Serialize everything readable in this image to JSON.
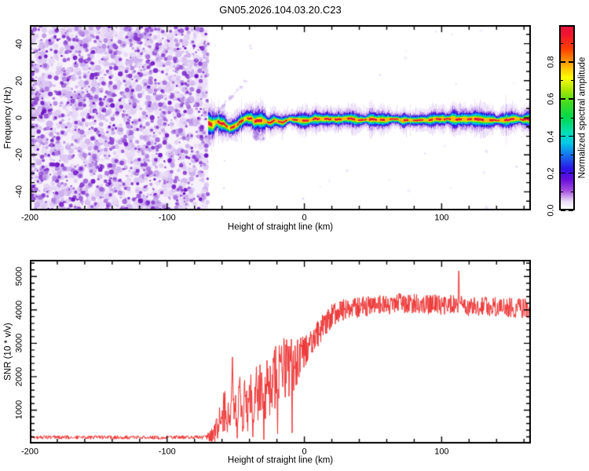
{
  "title": "GN05.2026.104.03.20.C23",
  "panels": {
    "spectrogram": {
      "xlabel": "Height of straight line (km)",
      "ylabel": "Frequency (Hz)",
      "xlim": [
        -200,
        165
      ],
      "ylim": [
        -50,
        50
      ],
      "xticks": [
        -200,
        -100,
        0,
        100
      ],
      "yticks": [
        -40,
        -20,
        0,
        20,
        40
      ],
      "x_minor_step": 20,
      "y_minor_step": 5
    },
    "snr": {
      "xlabel": "Height of straight line (km)",
      "ylabel": "SNR (10 * v/v)",
      "xlim": [
        -200,
        165
      ],
      "ylim": [
        0,
        5500
      ],
      "xticks": [
        -200,
        -100,
        0,
        100
      ],
      "yticks": [
        1000,
        2000,
        3000,
        4000,
        5000
      ],
      "x_minor_step": 20,
      "y_minor_step": 200,
      "line_color": "#ee3333"
    }
  },
  "colorbar": {
    "label": "Normalized spectral amplitude",
    "ticks": [
      "0.0",
      "0.2",
      "0.4",
      "0.6",
      "0.8"
    ],
    "tick_values": [
      0,
      0.2,
      0.4,
      0.6,
      0.8
    ],
    "minor_tick_values": [
      0.1,
      0.3,
      0.5,
      0.7,
      0.9
    ],
    "range": [
      0,
      1
    ],
    "stops": [
      {
        "v": 0.0,
        "c": "#ffffff"
      },
      {
        "v": 0.04,
        "c": "#ecdff7"
      },
      {
        "v": 0.1,
        "c": "#a34ee0"
      },
      {
        "v": 0.16,
        "c": "#6a0edd"
      },
      {
        "v": 0.22,
        "c": "#2a14e8"
      },
      {
        "v": 0.3,
        "c": "#1479f0"
      },
      {
        "v": 0.36,
        "c": "#00c8e8"
      },
      {
        "v": 0.42,
        "c": "#00e0b4"
      },
      {
        "v": 0.5,
        "c": "#00d850"
      },
      {
        "v": 0.58,
        "c": "#3fdc1e"
      },
      {
        "v": 0.66,
        "c": "#b4e800"
      },
      {
        "v": 0.72,
        "c": "#ffff00"
      },
      {
        "v": 0.8,
        "c": "#ffa000"
      },
      {
        "v": 0.88,
        "c": "#ff3c00"
      },
      {
        "v": 0.96,
        "c": "#f01430"
      },
      {
        "v": 1.0,
        "c": "#e8143c"
      }
    ]
  },
  "chart_data": [
    {
      "type": "heatmap",
      "title": "GN05.2026.104.03.20.C23",
      "xlabel": "Height of straight line (km)",
      "ylabel": "Frequency (Hz)",
      "xlim": [
        -200,
        165
      ],
      "ylim": [
        -50,
        50
      ],
      "colorbar_label": "Normalized spectral amplitude",
      "colorbar_range": [
        0,
        1
      ],
      "noise_region": {
        "x_start": -200,
        "x_end": -70,
        "description": "broadband purple speckle noise filling full frequency range",
        "amplitude_range": [
          0,
          0.25
        ],
        "background": "#f6f1fb",
        "palette_light": [
          "#eadcf7",
          "#ddc9f3",
          "#ccadee"
        ],
        "palette_dark": [
          "#b488e4",
          "#9e63da",
          "#8a3fd2",
          "#7a22cc",
          "#6f14c6"
        ]
      },
      "signal_track": {
        "x_start": -70,
        "x_end": 165,
        "peak_amplitude": 1.0,
        "center_freq_hz": [
          [
            -70,
            -2.5
          ],
          [
            -67,
            -4.0
          ],
          [
            -64,
            -3.0
          ],
          [
            -61,
            -4.5
          ],
          [
            -58,
            -3.5
          ],
          [
            -55,
            -5.0
          ],
          [
            -52,
            -4.0
          ],
          [
            -49,
            -2.5
          ],
          [
            -46,
            -1.5
          ],
          [
            -43,
            -1.0
          ],
          [
            -40,
            -0.8
          ],
          [
            -37,
            -2.2
          ],
          [
            -34,
            -1.0
          ],
          [
            -31,
            -0.6
          ],
          [
            -28,
            -1.2
          ],
          [
            -25,
            -2.8
          ],
          [
            -22,
            -1.2
          ],
          [
            -19,
            -2.0
          ],
          [
            -16,
            -2.6
          ],
          [
            -13,
            -1.2
          ],
          [
            -10,
            -0.8
          ],
          [
            -6,
            -1.4
          ],
          [
            -2,
            -1.0
          ],
          [
            10,
            -1.0
          ],
          [
            40,
            -0.9
          ],
          [
            80,
            -1.1
          ],
          [
            120,
            -1.0
          ],
          [
            165,
            -1.0
          ]
        ],
        "layers": [
          [
            "#c49aee",
            7.0,
            0.28
          ],
          [
            "#9a5ade",
            4.6,
            0.5
          ],
          [
            "#5a18d8",
            3.4,
            0.9
          ],
          [
            "#2a14e8",
            2.8,
            1
          ],
          [
            "#0682f0",
            2.35,
            1
          ],
          [
            "#00c8e8",
            2.0,
            1
          ],
          [
            "#00dc64",
            1.6,
            1
          ],
          [
            "#64e400",
            1.28,
            1
          ],
          [
            "#e8f000",
            1.02,
            1
          ],
          [
            "#ffb400",
            0.78,
            1
          ],
          [
            "#e8143c",
            0.5,
            1
          ]
        ],
        "whisker_color": "#9660dc",
        "diagonal_streak": {
          "from": [
            -66,
            0.5
          ],
          "to": [
            -42,
            20.5
          ]
        },
        "under_blob": {
          "x": -33,
          "freq": -9
        }
      }
    },
    {
      "type": "line",
      "name": "snr_trace",
      "xlabel": "Height of straight line (km)",
      "ylabel": "SNR (10 * v/v)",
      "xlim": [
        -200,
        165
      ],
      "ylim": [
        0,
        5500
      ],
      "color": "#ee3333",
      "mean_keypoints": [
        [
          -200,
          185
        ],
        [
          -72,
          185
        ],
        [
          -66,
          260
        ],
        [
          -62,
          650
        ],
        [
          -58,
          950
        ],
        [
          -54,
          1050
        ],
        [
          -50,
          900
        ],
        [
          -46,
          1050
        ],
        [
          -42,
          1150
        ],
        [
          -38,
          1300
        ],
        [
          -34,
          1500
        ],
        [
          -30,
          1550
        ],
        [
          -26,
          1700
        ],
        [
          -22,
          1950
        ],
        [
          -18,
          2150
        ],
        [
          -14,
          2250
        ],
        [
          -10,
          2350
        ],
        [
          -6,
          2450
        ],
        [
          -2,
          2650
        ],
        [
          2,
          2900
        ],
        [
          6,
          3100
        ],
        [
          10,
          3300
        ],
        [
          14,
          3550
        ],
        [
          18,
          3750
        ],
        [
          24,
          3950
        ],
        [
          32,
          4050
        ],
        [
          45,
          4100
        ],
        [
          70,
          4200
        ],
        [
          100,
          4150
        ],
        [
          130,
          4100
        ],
        [
          165,
          4050
        ]
      ],
      "noise_amplitude_keypoints": [
        [
          -200,
          55
        ],
        [
          -72,
          55
        ],
        [
          -66,
          260
        ],
        [
          -60,
          600
        ],
        [
          -52,
          750
        ],
        [
          -44,
          800
        ],
        [
          -36,
          850
        ],
        [
          -28,
          900
        ],
        [
          -20,
          950
        ],
        [
          -14,
          980
        ],
        [
          -10,
          900
        ],
        [
          -6,
          750
        ],
        [
          -2,
          600
        ],
        [
          2,
          500
        ],
        [
          6,
          450
        ],
        [
          12,
          400
        ],
        [
          20,
          350
        ],
        [
          30,
          310
        ],
        [
          165,
          300
        ]
      ],
      "spikes": [
        [
          -52.5,
          2870
        ],
        [
          -47,
          2050
        ],
        [
          -43.5,
          1900
        ],
        [
          -35,
          2380
        ],
        [
          -31,
          2050
        ],
        [
          -22.5,
          2480
        ],
        [
          -17,
          2730
        ],
        [
          -12.5,
          3060
        ],
        [
          112.5,
          5430
        ]
      ],
      "dips": [
        [
          -49,
          130
        ],
        [
          -44.5,
          70
        ],
        [
          -37.5,
          160
        ],
        [
          -29.5,
          90
        ],
        [
          -19.5,
          280
        ],
        [
          -9,
          40
        ]
      ]
    }
  ]
}
